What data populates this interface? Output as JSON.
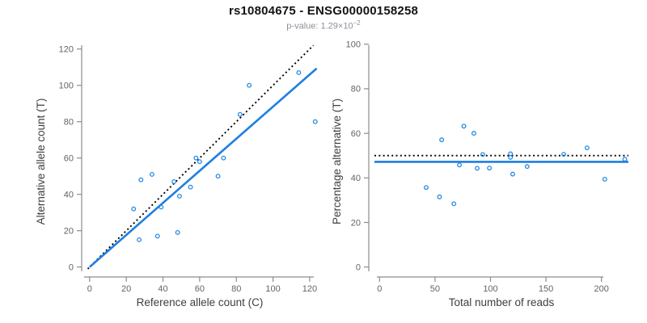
{
  "header": {
    "title": "rs10804675 - ENSG00000158258",
    "pvalue_label": "p-value: 1.29×10",
    "pvalue_exponent": "−2"
  },
  "colors": {
    "point": "#2289e4",
    "fit_line": "#1e7fe0",
    "reference_line": "#000000",
    "axis": "#8c8c8c",
    "tick_label": "#5f646b",
    "axis_title": "#3f3f3f",
    "title": "#141414",
    "subtitle": "#8b9099"
  },
  "chart_data": [
    {
      "type": "scatter",
      "panel": "left",
      "xlabel": "Reference allele count (C)",
      "ylabel": "Alternative allele count (T)",
      "xlim": [
        0,
        123
      ],
      "ylim": [
        0,
        122
      ],
      "xticks": [
        0,
        20,
        40,
        60,
        80,
        100,
        120
      ],
      "yticks": [
        0,
        20,
        40,
        60,
        80,
        100,
        120
      ],
      "grid": false,
      "legend": "none",
      "points": [
        [
          24,
          32
        ],
        [
          27,
          15
        ],
        [
          28,
          48
        ],
        [
          34,
          51
        ],
        [
          37,
          17
        ],
        [
          39,
          33
        ],
        [
          46,
          47
        ],
        [
          48,
          19
        ],
        [
          49,
          39
        ],
        [
          55,
          44
        ],
        [
          58,
          60
        ],
        [
          60,
          58
        ],
        [
          70,
          50
        ],
        [
          73,
          60
        ],
        [
          82,
          84
        ],
        [
          87,
          100
        ],
        [
          114,
          107
        ],
        [
          123,
          80
        ]
      ],
      "lines": [
        {
          "name": "identity-line",
          "style": "dotted",
          "color": "#000000",
          "x1": -1,
          "y1": -1,
          "x2": 122,
          "y2": 122
        },
        {
          "name": "regression-line",
          "style": "solid",
          "color": "#1e7fe0",
          "x1": 0,
          "y1": 0,
          "x2": 123.8,
          "y2": 109.3
        }
      ]
    },
    {
      "type": "scatter",
      "panel": "right",
      "xlabel": "Total number of reads",
      "ylabel": "Percentage alternative (T)",
      "xlim": [
        0,
        221
      ],
      "ylim": [
        0,
        100
      ],
      "xticks": [
        0,
        50,
        100,
        150,
        200
      ],
      "yticks": [
        0,
        20,
        40,
        60,
        80,
        100
      ],
      "grid": false,
      "legend": "none",
      "points": [
        [
          42,
          35.7
        ],
        [
          54,
          31.5
        ],
        [
          56,
          57.1
        ],
        [
          67,
          28.4
        ],
        [
          72,
          45.8
        ],
        [
          76,
          63.2
        ],
        [
          85,
          60.0
        ],
        [
          88,
          44.3
        ],
        [
          93,
          50.5
        ],
        [
          99,
          44.4
        ],
        [
          118,
          50.8
        ],
        [
          118,
          49.2
        ],
        [
          120,
          41.7
        ],
        [
          133,
          45.1
        ],
        [
          166,
          50.6
        ],
        [
          187,
          53.5
        ],
        [
          203,
          39.4
        ],
        [
          221,
          48.4
        ]
      ],
      "lines": [
        {
          "name": "reference-50pct-line",
          "style": "dotted",
          "color": "#000000",
          "y": 50
        },
        {
          "name": "mean-percentage-line",
          "style": "solid",
          "color": "#1e7fe0",
          "y": 47.2
        }
      ]
    }
  ]
}
